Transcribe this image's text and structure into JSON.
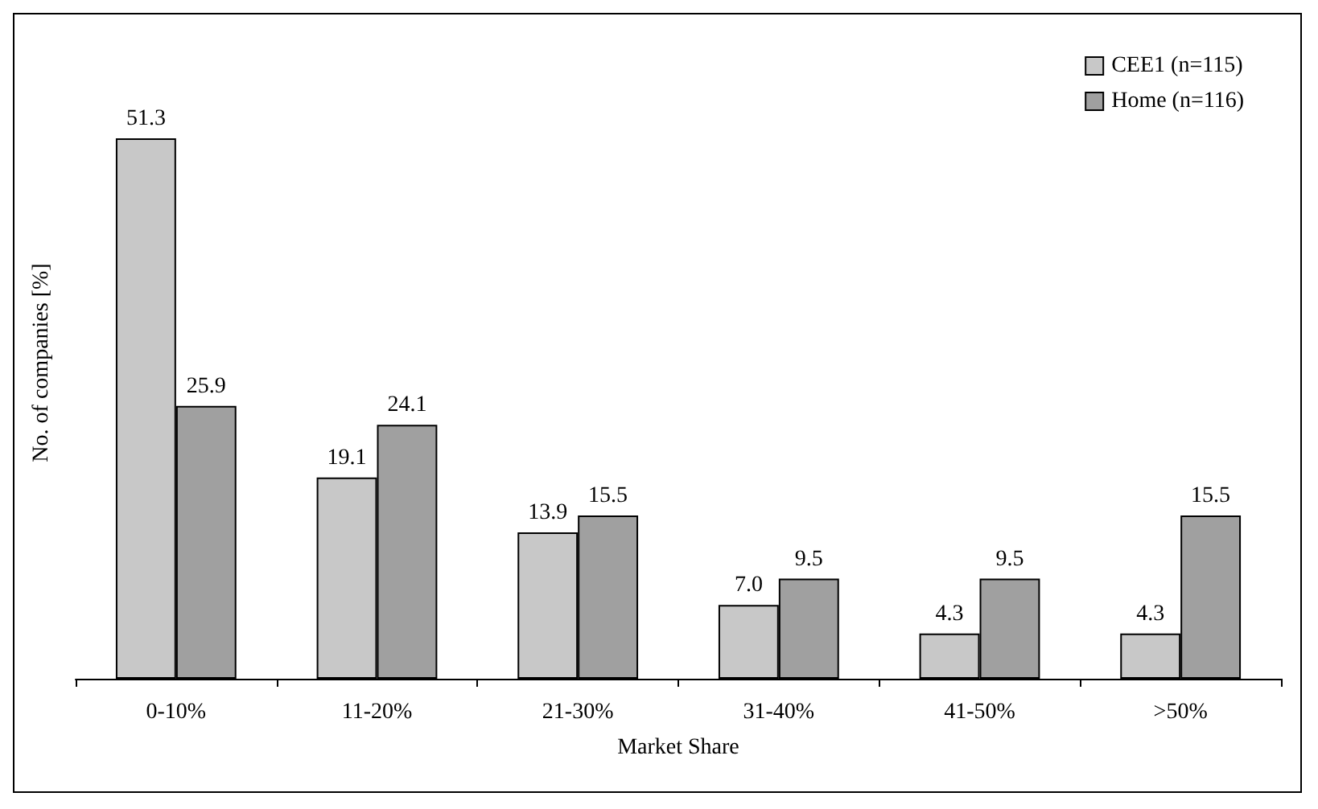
{
  "chart_data": {
    "type": "bar",
    "xlabel": "Market Share",
    "ylabel": "No. of companies [%]",
    "categories": [
      "0-10%",
      "11-20%",
      "21-30%",
      "31-40%",
      "41-50%",
      ">50%"
    ],
    "series": [
      {
        "name": "CEE1 (n=115)",
        "color": "#c8c8c8",
        "values": [
          51.3,
          19.1,
          13.9,
          7.0,
          4.3,
          4.3
        ],
        "value_labels": [
          "51.3",
          "19.1",
          "13.9",
          "7.0",
          "4.3",
          "4.3"
        ]
      },
      {
        "name": "Home (n=116)",
        "color": "#a0a0a0",
        "values": [
          25.9,
          24.1,
          15.5,
          9.5,
          9.5,
          15.5
        ],
        "value_labels": [
          "25.9",
          "24.1",
          "15.5",
          "9.5",
          "9.5",
          "15.5"
        ]
      }
    ],
    "legend": "top right",
    "grid": false
  }
}
